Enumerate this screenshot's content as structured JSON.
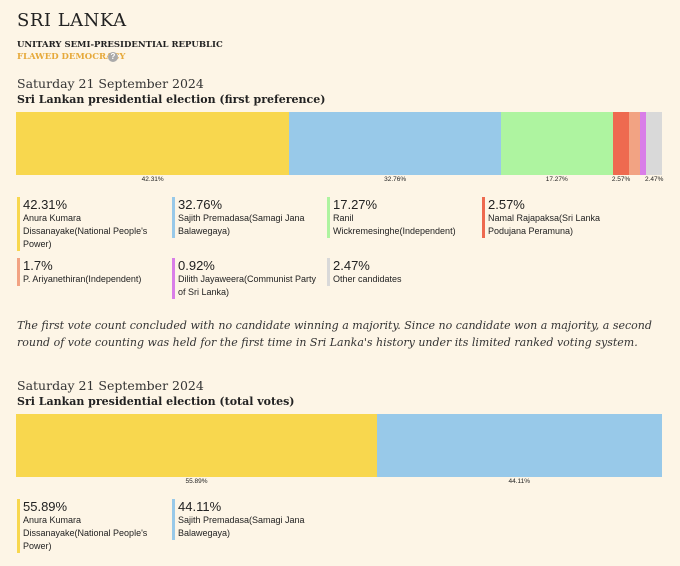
{
  "header": {
    "title": "SRI LANKA",
    "system": "UNITARY SEMI-PRESIDENTIAL REPUBLIC",
    "rating": "FLAWED DEMOCRACY",
    "rating_info": "?"
  },
  "chart_data": [
    {
      "type": "stacked-bar",
      "date": "Saturday 21 September 2024",
      "title": "Sri Lankan presidential election (first preference)",
      "xlim": [
        0,
        100
      ],
      "categories": [
        "Anura Kumara Dissanayake(National People's Power)",
        "Sajith Premadasa(Samagi Jana Balawegaya)",
        "Ranil Wickremesinghe(Independent)",
        "Namal Rajapaksa(Sri Lanka Podujana Peramuna)",
        "P. Ariyanethiran(Independent)",
        "Dilith Jayaweera(Communist Party of Sri Lanka)",
        "Other candidates"
      ],
      "values": [
        42.31,
        32.76,
        17.27,
        2.57,
        1.7,
        0.92,
        2.47
      ],
      "value_labels": [
        "42.31%",
        "32.76%",
        "17.27%",
        "2.57%",
        "1.7%",
        "0.92%",
        "2.47%"
      ],
      "colors": [
        "#f8d74e",
        "#98c9e9",
        "#aef4a0",
        "#ee6a50",
        "#f2a383",
        "#d97ee8",
        "#d9d9d9"
      ]
    },
    {
      "type": "stacked-bar",
      "date": "Saturday 21 September 2024",
      "title": "Sri Lankan presidential election (total votes)",
      "xlim": [
        0,
        100
      ],
      "categories": [
        "Anura Kumara Dissanayake(National People's Power)",
        "Sajith Premadasa(Samagi Jana Balawegaya)"
      ],
      "values": [
        55.89,
        44.11
      ],
      "value_labels": [
        "55.89%",
        "44.11%"
      ],
      "colors": [
        "#f8d74e",
        "#98c9e9"
      ]
    }
  ],
  "note": "The first vote count concluded with no candidate winning a majority. Since no candidate won a majority, a second round of vote counting was held for the first time in Sri Lanka's history under its limited ranked voting system."
}
